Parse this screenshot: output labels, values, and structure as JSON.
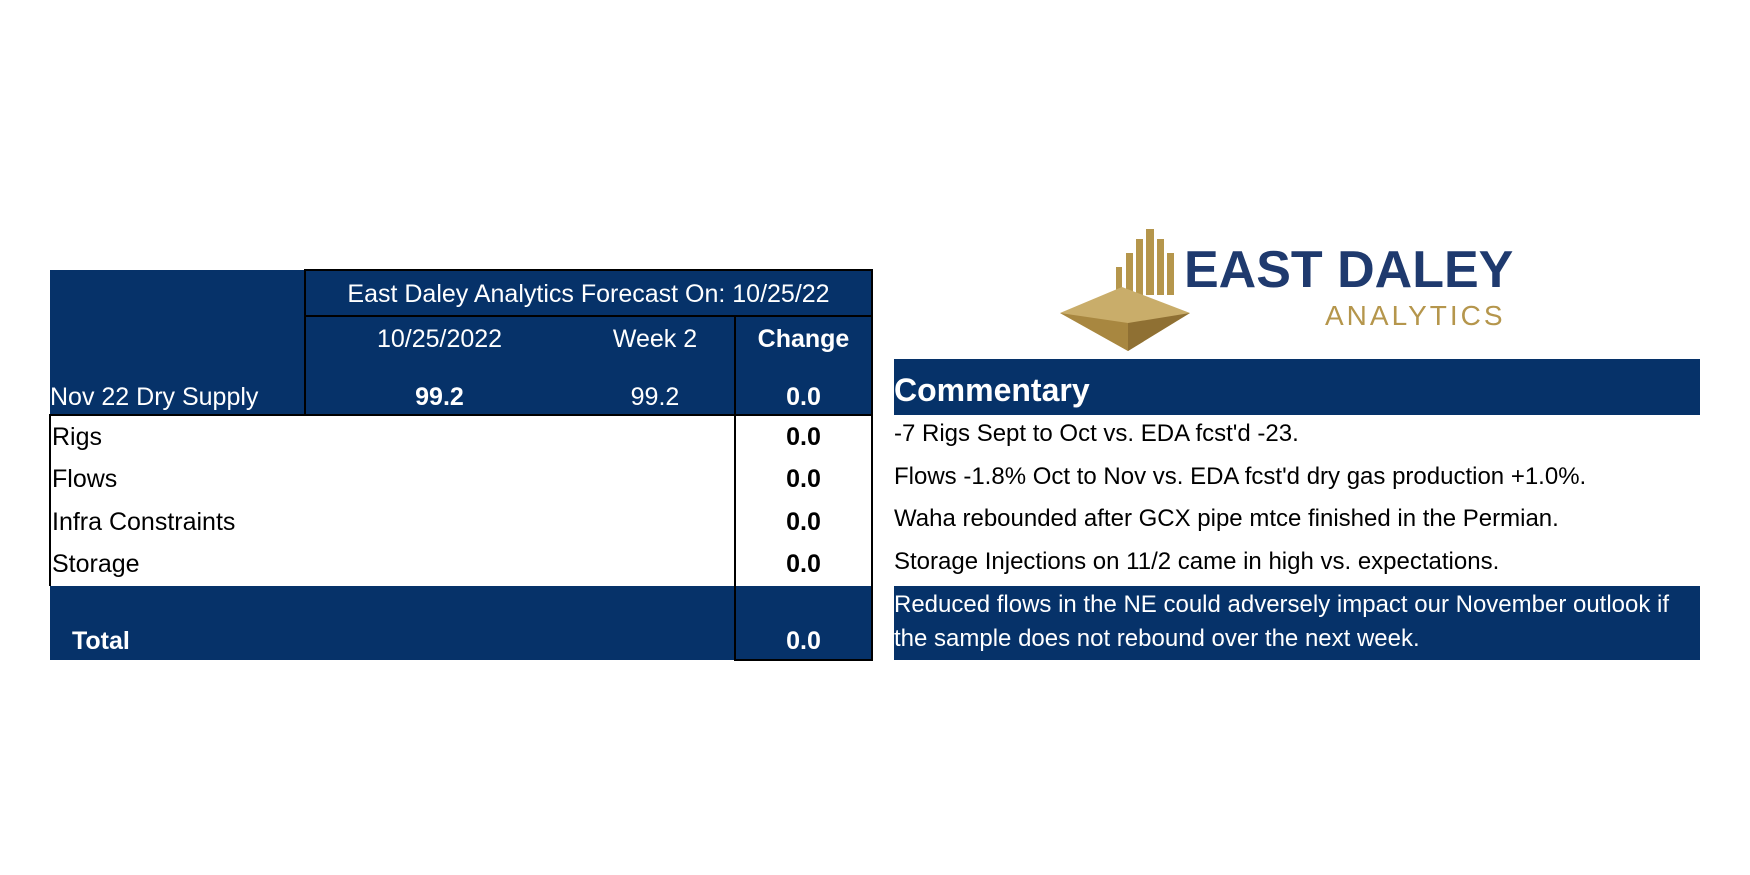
{
  "table": {
    "title": "East Daley Analytics Forecast On: 10/25/22",
    "columns": [
      "10/25/2022",
      "Week 2",
      "Change"
    ],
    "supply": {
      "label": "Nov 22 Dry Supply",
      "cells": [
        "99.2",
        "99.2",
        "0.0"
      ]
    },
    "rows": [
      {
        "label": "Rigs",
        "change": "0.0"
      },
      {
        "label": "Flows",
        "change": "0.0"
      },
      {
        "label": "Infra Constraints",
        "change": "0.0"
      },
      {
        "label": "Storage",
        "change": "0.0"
      }
    ],
    "total": {
      "label": "Total",
      "change": "0.0"
    }
  },
  "logo": {
    "name": "EAST DALEY",
    "subname": "ANALYTICS"
  },
  "commentary": {
    "title": "Commentary",
    "lines": [
      "-7 Rigs Sept to Oct vs. EDA fcst'd -23.",
      "Flows -1.8% Oct to Nov vs. EDA fcst'd dry gas production +1.0%.",
      "Waha rebounded after GCX pipe mtce finished in the Permian.",
      "Storage Injections on 11/2 came in high vs. expectations.",
      "Reduced flows in the NE could adversely impact our November outlook if the sample does not rebound over the next week."
    ]
  }
}
